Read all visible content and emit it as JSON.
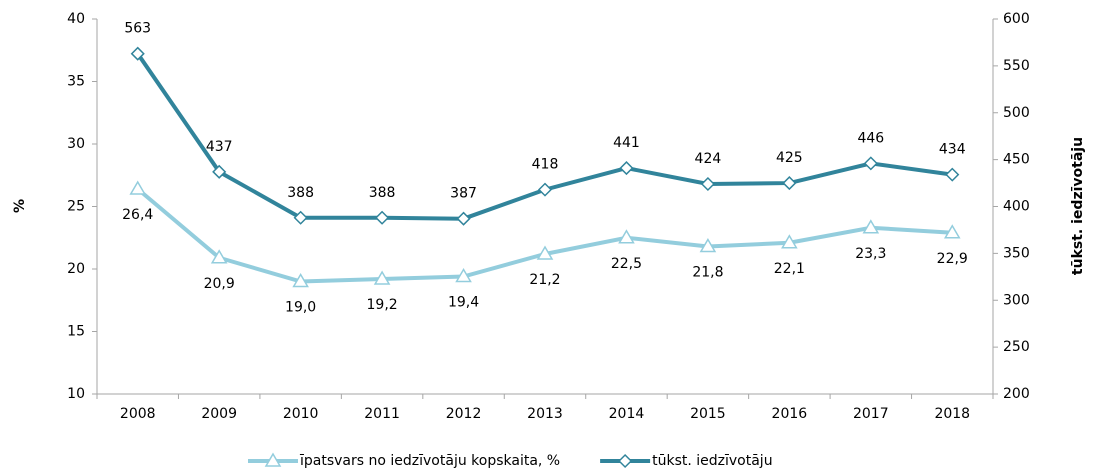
{
  "chart_data": {
    "type": "line",
    "categories": [
      "2008",
      "2009",
      "2010",
      "2011",
      "2012",
      "2013",
      "2014",
      "2015",
      "2016",
      "2017",
      "2018"
    ],
    "series": [
      {
        "name": "īpatsvars no iedzīvotāju kopskaita, %",
        "color": "#93cddd",
        "marker": "triangle",
        "axis": "y",
        "values": [
          26.4,
          20.9,
          19.0,
          19.2,
          19.4,
          21.2,
          22.5,
          21.8,
          22.1,
          23.3,
          22.9
        ],
        "value_labels": [
          "26,4",
          "20,9",
          "19,0",
          "19,2",
          "19,4",
          "21,2",
          "22,5",
          "21,8",
          "22,1",
          "23,3",
          "22,9"
        ]
      },
      {
        "name": "tūkst. iedzīvotāju",
        "color": "#31849b",
        "marker": "diamond",
        "axis": "y2",
        "values": [
          563,
          437,
          388,
          388,
          387,
          418,
          441,
          424,
          425,
          446,
          434
        ]
      }
    ],
    "ylabel": "%",
    "y2label": "tūkst. iedzīvotāju",
    "ylim": [
      10,
      40
    ],
    "yticks": [
      10,
      15,
      20,
      25,
      30,
      35,
      40
    ],
    "y2lim": [
      200,
      600
    ],
    "y2ticks": [
      200,
      250,
      300,
      350,
      400,
      450,
      500,
      550,
      600
    ],
    "grid": false,
    "legend": "bottom"
  }
}
